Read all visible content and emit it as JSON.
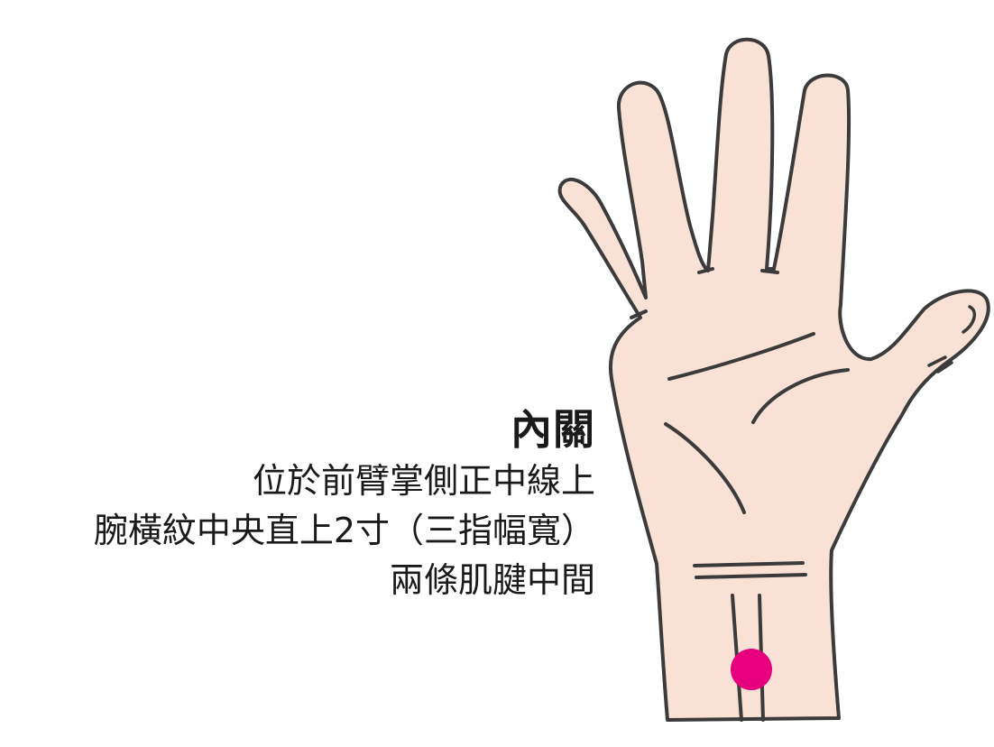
{
  "acupoint": {
    "name": "內關",
    "description_lines": [
      "位於前臂掌側正中線上",
      "腕橫紋中央直上2寸（三指幅寬）",
      "兩條肌腱中間"
    ]
  },
  "colors": {
    "skin": "#f9e1d6",
    "outline": "#3b3b3b",
    "point_marker": "#e6007e",
    "text": "#1a1a1a"
  },
  "icons": {
    "hand": "palm-hand-illustration",
    "marker": "acupoint-dot"
  }
}
